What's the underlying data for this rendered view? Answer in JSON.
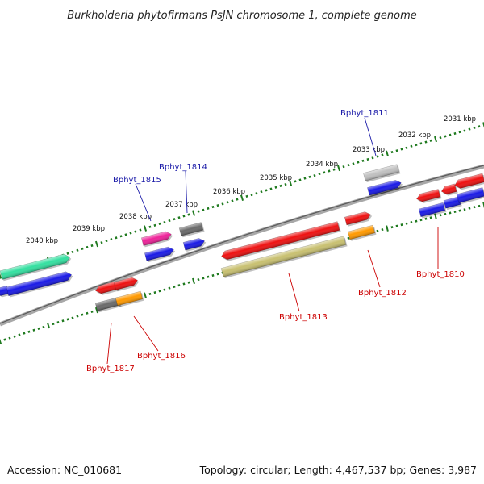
{
  "title": "Burkholderia phytofirmans PsJN chromosome 1, complete genome",
  "footer": {
    "accession": "Accession: NC_010681",
    "info": "Topology: circular; Length: 4,467,537 bp; Genes: 3,987"
  },
  "scale_labels": [
    "2031 kbp",
    "2032 kbp",
    "2033 kbp",
    "2034 kbp",
    "2035 kbp",
    "2036 kbp",
    "2037 kbp",
    "2038 kbp",
    "2039 kbp",
    "2040 kbp"
  ],
  "gene_labels_top": [
    "Bphyt_1811",
    "Bphyt_1814",
    "Bphyt_1815"
  ],
  "gene_labels_bottom": [
    "Bphyt_1810",
    "Bphyt_1812",
    "Bphyt_1813",
    "Bphyt_1816",
    "Bphyt_1817"
  ],
  "colors": {
    "label_top": "#1a1aa8",
    "label_bottom": "#cc0000",
    "backbone": "#7a7a7a",
    "tick": "#1f7a1f",
    "red": "#ee1111",
    "blue": "#1a1ae6",
    "grey": "#6a6a6a",
    "light_grey": "#c0c0c0",
    "orange": "#ff9900",
    "pink": "#ee2299",
    "aqua": "#33e0a0",
    "khaki": "#c8c070"
  }
}
